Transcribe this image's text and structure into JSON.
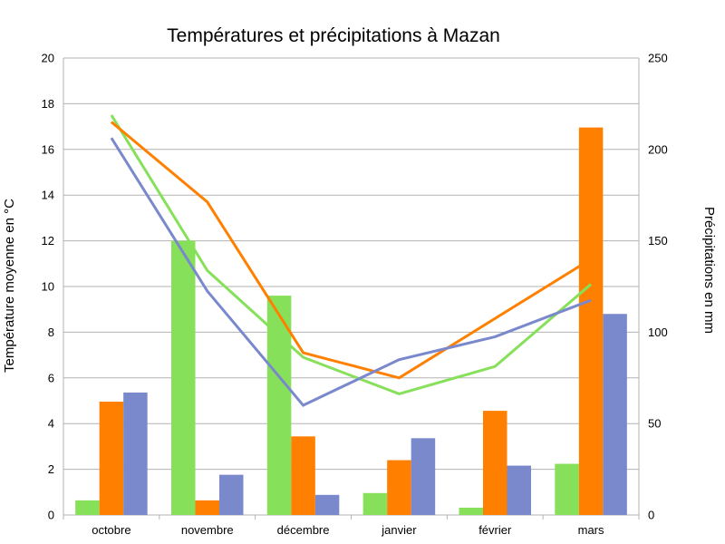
{
  "chart_data": {
    "type": "bar",
    "title": "Températures et précipitations à Mazan",
    "categories": [
      "octobre",
      "novembre",
      "décembre",
      "janvier",
      "février",
      "mars"
    ],
    "y_left": {
      "label": "Température moyenne en °C",
      "range": [
        0,
        20
      ],
      "ticks": [
        "0",
        "2",
        "4",
        "6",
        "8",
        "10",
        "12",
        "14",
        "16",
        "18",
        "20"
      ]
    },
    "y_right": {
      "label": "Précipitations en mm",
      "range": [
        0,
        250
      ],
      "ticks": [
        "0",
        "50",
        "100",
        "150",
        "200",
        "250"
      ]
    },
    "grid": true,
    "legend": "none",
    "bar_series": [
      {
        "color": "#87e05a",
        "axis": "right",
        "values": [
          8,
          150,
          120,
          12,
          4,
          28
        ]
      },
      {
        "color": "#ff8000",
        "axis": "right",
        "values": [
          62,
          8,
          43,
          30,
          57,
          212
        ]
      },
      {
        "color": "#7a88cc",
        "axis": "right",
        "values": [
          67,
          22,
          11,
          42,
          27,
          110
        ]
      }
    ],
    "line_series": [
      {
        "color": "#87e05a",
        "axis": "left",
        "values": [
          17.5,
          10.7,
          6.9,
          5.3,
          6.5,
          10.1
        ]
      },
      {
        "color": "#ff8000",
        "axis": "left",
        "values": [
          17.2,
          13.7,
          7.1,
          6.0,
          8.6,
          11.2
        ]
      },
      {
        "color": "#7a88cc",
        "axis": "left",
        "values": [
          16.5,
          9.8,
          4.8,
          6.8,
          7.8,
          9.4
        ]
      }
    ]
  }
}
